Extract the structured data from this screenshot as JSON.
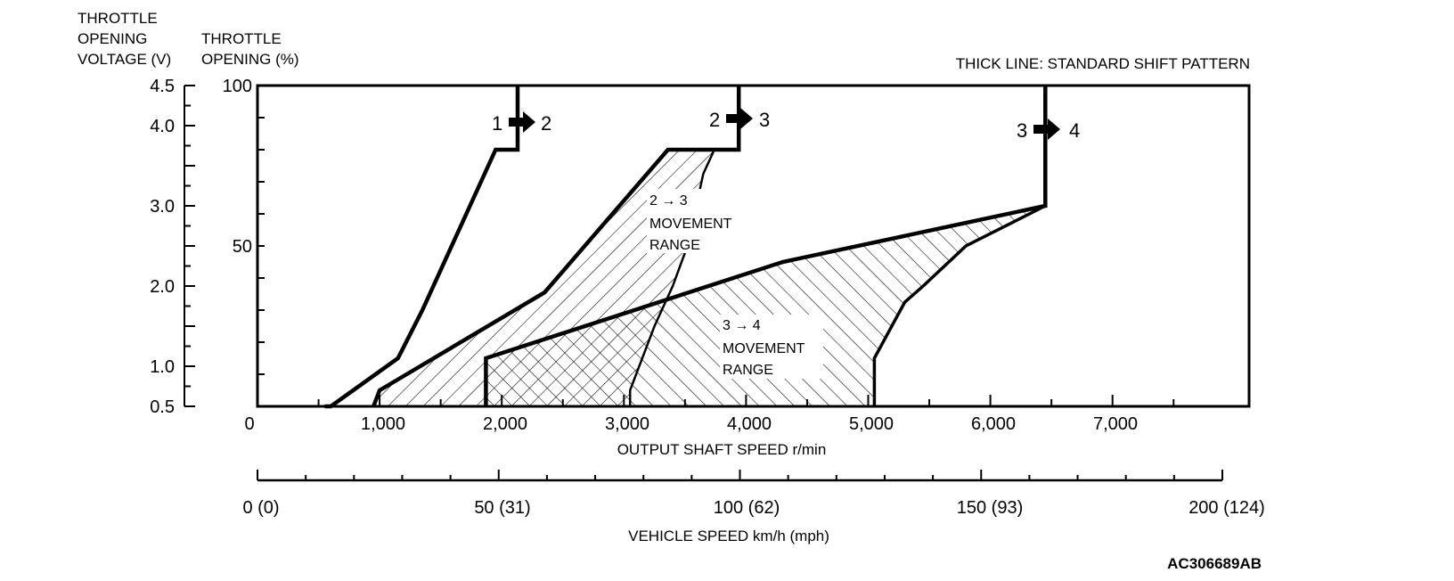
{
  "chart_data": {
    "type": "line",
    "title": "",
    "notes": {
      "legend_note": "THICK LINE: STANDARD SHIFT PATTERN",
      "figure_id": "AC306689AB"
    },
    "y_axis_left": {
      "title_lines": [
        "THROTTLE",
        "OPENING",
        "VOLTAGE (V)"
      ],
      "tick_labels": [
        "4.5",
        "4.0",
        "3.0",
        "2.0",
        "1.0",
        "0.5"
      ],
      "tick_values": [
        4.5,
        4.0,
        3.0,
        2.0,
        1.0,
        0.5
      ],
      "range": [
        0.5,
        4.5
      ]
    },
    "y_axis_right": {
      "title_lines": [
        "THROTTLE",
        "OPENING (%)"
      ],
      "tick_labels": [
        "100",
        "50"
      ],
      "tick_values": [
        100,
        50
      ],
      "range": [
        0,
        100
      ]
    },
    "x_axis": {
      "label": "OUTPUT SHAFT SPEED r/min",
      "tick_labels": [
        "0",
        "1,000",
        "2,000",
        "3,000",
        "4,000",
        "5,000",
        "6,000",
        "7,000"
      ],
      "tick_values": [
        0,
        1000,
        2000,
        3000,
        4000,
        5000,
        6000,
        7000
      ],
      "range": [
        0,
        8100
      ]
    },
    "x_axis_secondary": {
      "label": "VEHICLE SPEED km/h (mph)",
      "tick_labels": [
        "0 (0)",
        "50 (31)",
        "100 (62)",
        "150 (93)",
        "200 (124)"
      ],
      "tick_values": [
        0,
        50,
        100,
        150,
        200
      ],
      "range": [
        0,
        200
      ]
    },
    "series": [
      {
        "name": "1 → 2",
        "label_parts": [
          "1",
          "2"
        ],
        "points": [
          [
            550,
            0.5
          ],
          [
            600,
            0.5
          ],
          [
            1150,
            1.1
          ],
          [
            1350,
            1.7
          ],
          [
            1950,
            3.7
          ],
          [
            2130,
            3.7
          ],
          [
            2130,
            4.5
          ]
        ]
      },
      {
        "name": "2 → 3",
        "label_parts": [
          "2",
          "3"
        ],
        "points": [
          [
            950,
            0.5
          ],
          [
            1000,
            0.7
          ],
          [
            2350,
            1.92
          ],
          [
            3360,
            3.7
          ],
          [
            3940,
            3.7
          ],
          [
            3940,
            4.5
          ]
        ]
      },
      {
        "name": "3 → 4",
        "label_parts": [
          "3",
          "4"
        ],
        "points": [
          [
            1870,
            0.5
          ],
          [
            1870,
            1.1
          ],
          [
            4300,
            2.3
          ],
          [
            6450,
            3.0
          ],
          [
            6450,
            4.5
          ]
        ]
      }
    ],
    "movement_ranges": [
      {
        "label_lines": [
          "2 → 3",
          "MOVEMENT",
          "RANGE"
        ],
        "right_boundary": [
          [
            3740,
            3.7
          ],
          [
            3650,
            3.4
          ],
          [
            3520,
            2.5
          ],
          [
            3400,
            2.0
          ],
          [
            3250,
            1.5
          ],
          [
            3050,
            0.7
          ],
          [
            3050,
            0.5
          ]
        ]
      },
      {
        "label_lines": [
          "3 → 4",
          "MOVEMENT",
          "RANGE"
        ],
        "right_boundary": [
          [
            6450,
            3.0
          ],
          [
            5800,
            2.5
          ],
          [
            5450,
            2.0
          ],
          [
            5300,
            1.8
          ],
          [
            5050,
            1.1
          ],
          [
            5050,
            0.5
          ]
        ]
      }
    ]
  }
}
